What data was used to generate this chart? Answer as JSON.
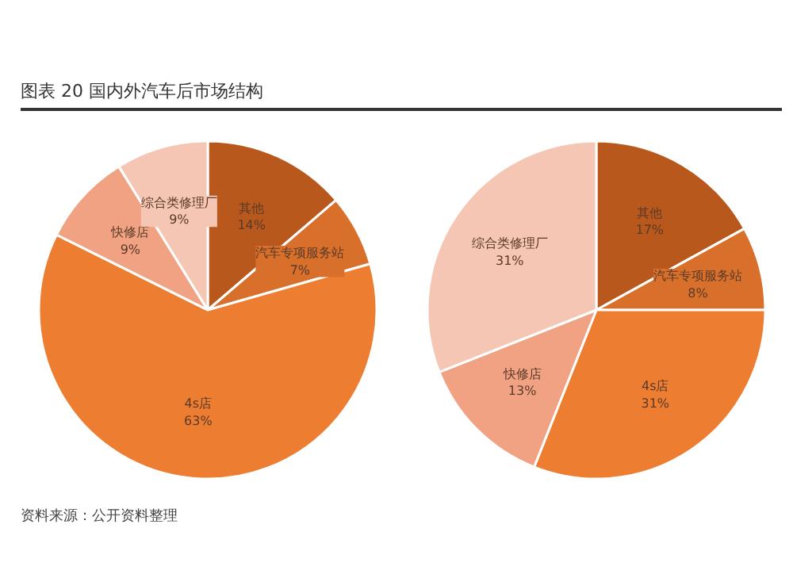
{
  "chart_data": [
    {
      "type": "pie",
      "title": "图表 20 国内外汽车后市场结构",
      "categories": [
        "其他",
        "汽车专项服务站",
        "4s店",
        "快修店",
        "综合类修理厂"
      ],
      "values": [
        14,
        7,
        63,
        9,
        9
      ],
      "value_labels": [
        "14%",
        "7%",
        "63%",
        "9%",
        "9%"
      ],
      "colors": [
        "#b8581c",
        "#d8702b",
        "#ed7d31",
        "#f0a283",
        "#f5c6b3"
      ]
    },
    {
      "type": "pie",
      "categories": [
        "其他",
        "汽车专项服务站",
        "4s店",
        "快修店",
        "综合类修理厂"
      ],
      "values": [
        17,
        8,
        31,
        13,
        31
      ],
      "value_labels": [
        "17%",
        "8%",
        "31%",
        "13%",
        "31%"
      ],
      "colors": [
        "#b8581c",
        "#d8702b",
        "#ed7d31",
        "#f0a283",
        "#f5c6b3"
      ],
      "annotations": [
        "资料来源：公开资料整理"
      ]
    }
  ]
}
